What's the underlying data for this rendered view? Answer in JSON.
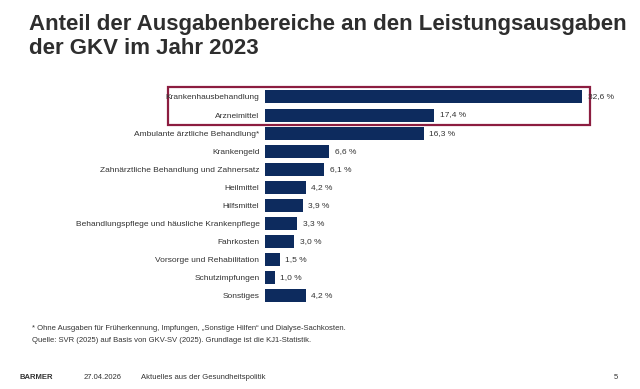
{
  "chart_data": {
    "type": "bar",
    "orientation": "horizontal",
    "title": "Anteil der Ausgabenbereiche an den Leistungsausgaben der GKV im Jahr 2023",
    "categories": [
      "Krankenhausbehandlung",
      "Arzneimittel",
      "Ambulante ärztliche Behandlung*",
      "Krankengeld",
      "Zahnärztliche Behandlung und Zahnersatz",
      "Heilmittel",
      "Hilfsmittel",
      "Behandlungspflege und häusliche Krankenpflege",
      "Fahrkosten",
      "Vorsorge und Rehabilitation",
      "Schutzimpfungen",
      "Sonstiges"
    ],
    "values": [
      32.6,
      17.4,
      16.3,
      6.6,
      6.1,
      4.2,
      3.9,
      3.3,
      3.0,
      1.5,
      1.0,
      4.2
    ],
    "value_labels": [
      "32,6 %",
      "17,4 %",
      "16,3 %",
      "6,6 %",
      "6,1 %",
      "4,2 %",
      "3,9 %",
      "3,3 %",
      "3,0 %",
      "1,5 %",
      "1,0 %",
      "4,2 %"
    ],
    "color": "#0d2b5e",
    "data_labels": true,
    "tick_labels": "y",
    "annotations": [
      "* Ohne Ausgaben für Früherkennung, Impfungen, „Sonstige Hilfen“ und Dialyse-Sachkosten.",
      "Quelle: SVR (2025) auf Basis von GKV-SV (2025). Grundlage ist die KJ1-Statistik."
    ]
  },
  "footer": {
    "brand": "BARMER",
    "date": "27.04.2026",
    "text": "Aktuelles aus der Gesundheitspolitik",
    "page": "5"
  }
}
